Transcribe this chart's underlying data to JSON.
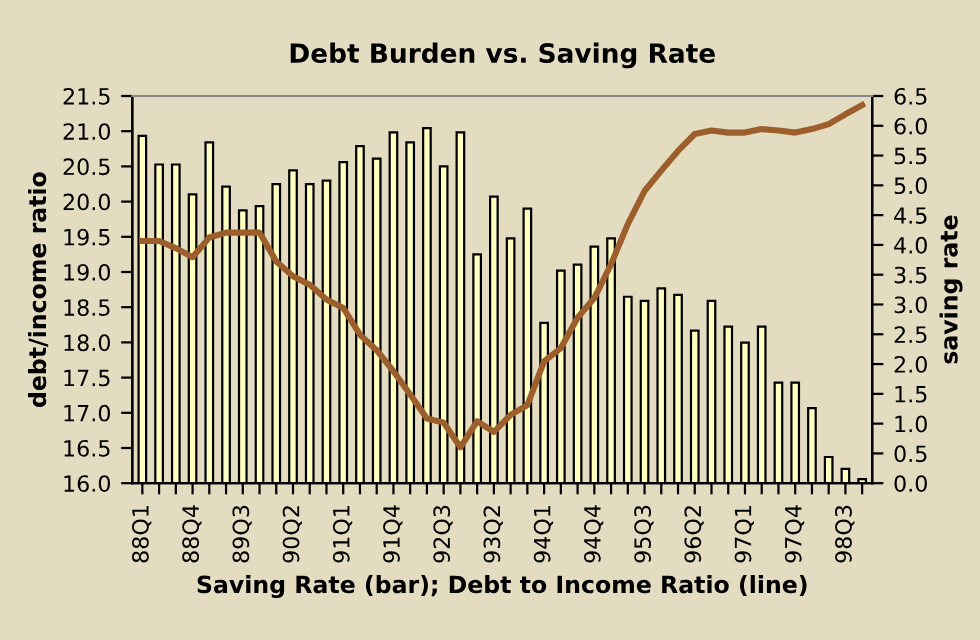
{
  "chart_data": {
    "type": "bar",
    "title": "Debt Burden vs. Saving Rate",
    "xlabel": "Saving Rate (bar); Debt to Income Ratio (line)",
    "ylabel": "debt/income ratio",
    "y2label": "saving rate",
    "categories": [
      "88Q1",
      null,
      null,
      "88Q4",
      null,
      null,
      "89Q3",
      null,
      null,
      "90Q2",
      null,
      null,
      "91Q1",
      null,
      null,
      "91Q4",
      null,
      null,
      "92Q3",
      null,
      null,
      "93Q2",
      null,
      null,
      "94Q1",
      null,
      null,
      "94Q4",
      null,
      null,
      "95Q3",
      null,
      null,
      "96Q2",
      null,
      null,
      "97Q1",
      null,
      null,
      "97Q4",
      null,
      null,
      "98Q3",
      null
    ],
    "series": [
      {
        "axis": "y2",
        "color": "#ffffc0",
        "values": [
          5.83,
          5.35,
          5.35,
          4.85,
          5.72,
          4.98,
          4.58,
          4.65,
          5.02,
          5.25,
          5.02,
          5.08,
          5.39,
          5.66,
          5.45,
          5.89,
          5.72,
          5.96,
          5.32,
          5.89,
          3.84,
          4.81,
          4.11,
          4.61,
          2.69,
          3.57,
          3.67,
          3.97,
          4.11,
          3.13,
          3.06,
          3.27,
          3.16,
          2.56,
          3.06,
          2.63,
          2.36,
          2.63,
          1.69,
          1.69,
          1.26,
          0.44,
          0.24,
          0.07
        ]
      },
      {
        "type": "line",
        "axis": "y",
        "color": "#9c5f2c",
        "values": [
          19.44,
          19.44,
          19.34,
          19.21,
          19.49,
          19.56,
          19.56,
          19.56,
          19.15,
          18.94,
          18.82,
          18.61,
          18.49,
          18.11,
          17.89,
          17.59,
          17.26,
          16.92,
          16.86,
          16.51,
          16.88,
          16.73,
          16.97,
          17.11,
          17.73,
          17.92,
          18.35,
          18.63,
          19.11,
          19.68,
          20.15,
          20.44,
          20.72,
          20.96,
          21.01,
          20.98,
          20.98,
          21.03,
          21.01,
          20.98,
          21.03,
          21.1,
          21.24,
          21.37
        ]
      }
    ],
    "ylim": [
      16.0,
      21.5
    ],
    "yticks": [
      {
        "value": 16,
        "label": "16.0"
      },
      16.5,
      {
        "value": 17,
        "label": "17.0"
      },
      17.5,
      {
        "value": 18,
        "label": "18.0"
      },
      18.5,
      {
        "value": 19,
        "label": "19.0"
      },
      19.5,
      {
        "value": 20,
        "label": "20.0"
      },
      20.5,
      {
        "value": 21,
        "label": "21.0"
      },
      21.5
    ],
    "y2lim": [
      0,
      6.5
    ],
    "y2ticks": [
      {
        "value": 0,
        "label": "0.0"
      },
      0.5,
      {
        "value": 1,
        "label": "1.0"
      },
      1.5,
      {
        "value": 2,
        "label": "2.0"
      },
      2.5,
      {
        "value": 3,
        "label": "3.0"
      },
      3.5,
      {
        "value": 4,
        "label": "4.0"
      },
      4.5,
      {
        "value": 5,
        "label": "5.0"
      },
      5.5,
      {
        "value": 6,
        "label": "6.0"
      },
      6.5
    ],
    "grid": false,
    "legend": false,
    "marker": "none",
    "line_style": "solid"
  }
}
